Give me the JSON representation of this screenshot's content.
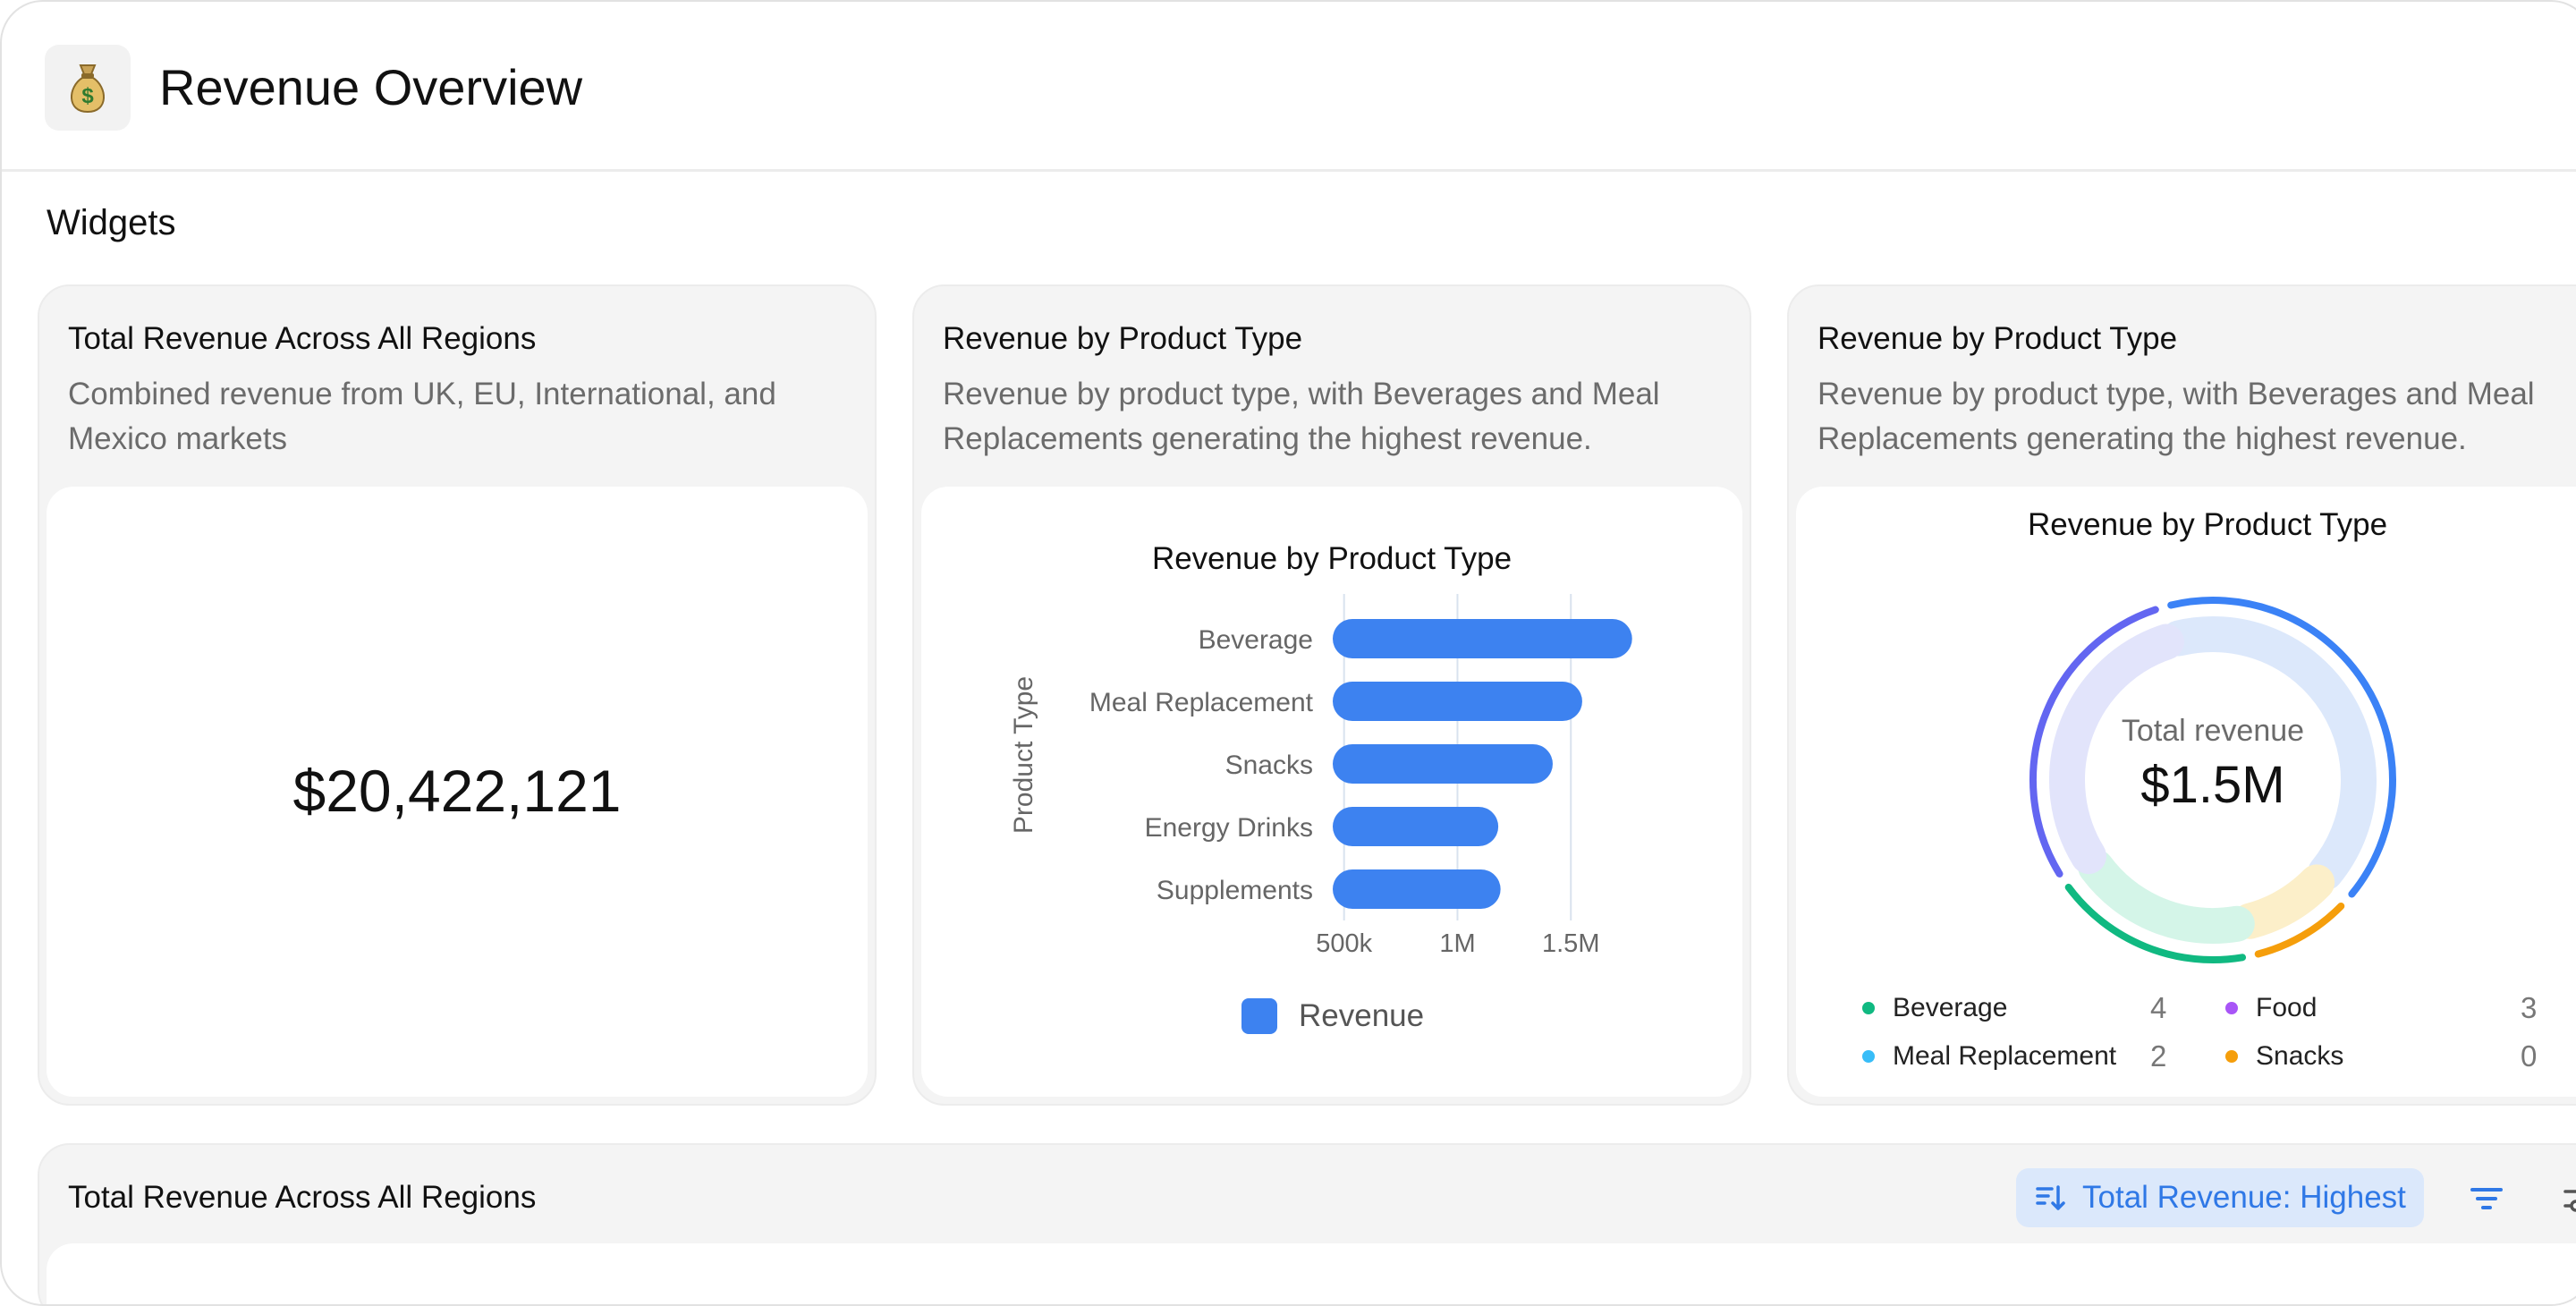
{
  "header": {
    "title": "Revenue Overview",
    "icon": "money-bag-icon"
  },
  "section_label": "Widgets",
  "widgets": [
    {
      "title": "Total Revenue Across All Regions",
      "description": "Combined revenue from UK, EU, International, and Mexico markets",
      "value": "$20,422,121"
    },
    {
      "title": "Revenue by Product Type",
      "description": "Revenue by product type, with Beverages and Meal Replacements generating the highest revenue.",
      "chart_title": "Revenue by Product Type",
      "legend": "Revenue"
    },
    {
      "title": "Revenue by Product Type",
      "description": "Revenue by product type, with Beverages and Meal Replacements generating the highest revenue.",
      "chart_title": "Revenue by Product Type",
      "center_label": "Total revenue",
      "center_value": "$1.5M",
      "legend": [
        {
          "name": "Beverage",
          "value": "4",
          "color": "#10b981"
        },
        {
          "name": "Food",
          "value": "3",
          "color": "#a855f7"
        },
        {
          "name": "Meal Replacement",
          "value": "2",
          "color": "#38bdf8"
        },
        {
          "name": "Snacks",
          "value": "0",
          "color": "#f59e0b"
        }
      ]
    }
  ],
  "chart_data": [
    {
      "type": "bar",
      "orientation": "horizontal",
      "title": "Revenue by Product Type",
      "ylabel": "Product Type",
      "xlabel": "",
      "categories": [
        "Beverage",
        "Meal Replacement",
        "Snacks",
        "Energy Drinks",
        "Supplements"
      ],
      "series": [
        {
          "name": "Revenue",
          "values": [
            1770000,
            1550000,
            1420000,
            1180000,
            1190000
          ]
        }
      ],
      "xlim": [
        450000,
        1850000
      ],
      "xticks": [
        500000,
        1000000,
        1500000
      ],
      "xtick_labels": [
        "500k",
        "1M",
        "1.5M"
      ],
      "color": "#3d82f0",
      "grid": true,
      "legend": "bottom"
    },
    {
      "type": "pie",
      "variant": "donut",
      "title": "Revenue by Product Type",
      "segments": [
        {
          "name": "Beverage",
          "fraction": 0.37,
          "color": "#3b82f6"
        },
        {
          "name": "Snacks",
          "fraction": 0.09,
          "color": "#f59e0b"
        },
        {
          "name": "Meal Replacement",
          "fraction": 0.17,
          "color": "#10b981"
        },
        {
          "name": "Food",
          "fraction": 0.27,
          "color": "#6366f1"
        }
      ]
    }
  ],
  "table_card": {
    "title": "Total Revenue Across All Regions",
    "sort_label": "Total Revenue: Highest"
  },
  "colors": {
    "accent": "#3d82f0",
    "chip_bg": "#dbe8fb"
  }
}
